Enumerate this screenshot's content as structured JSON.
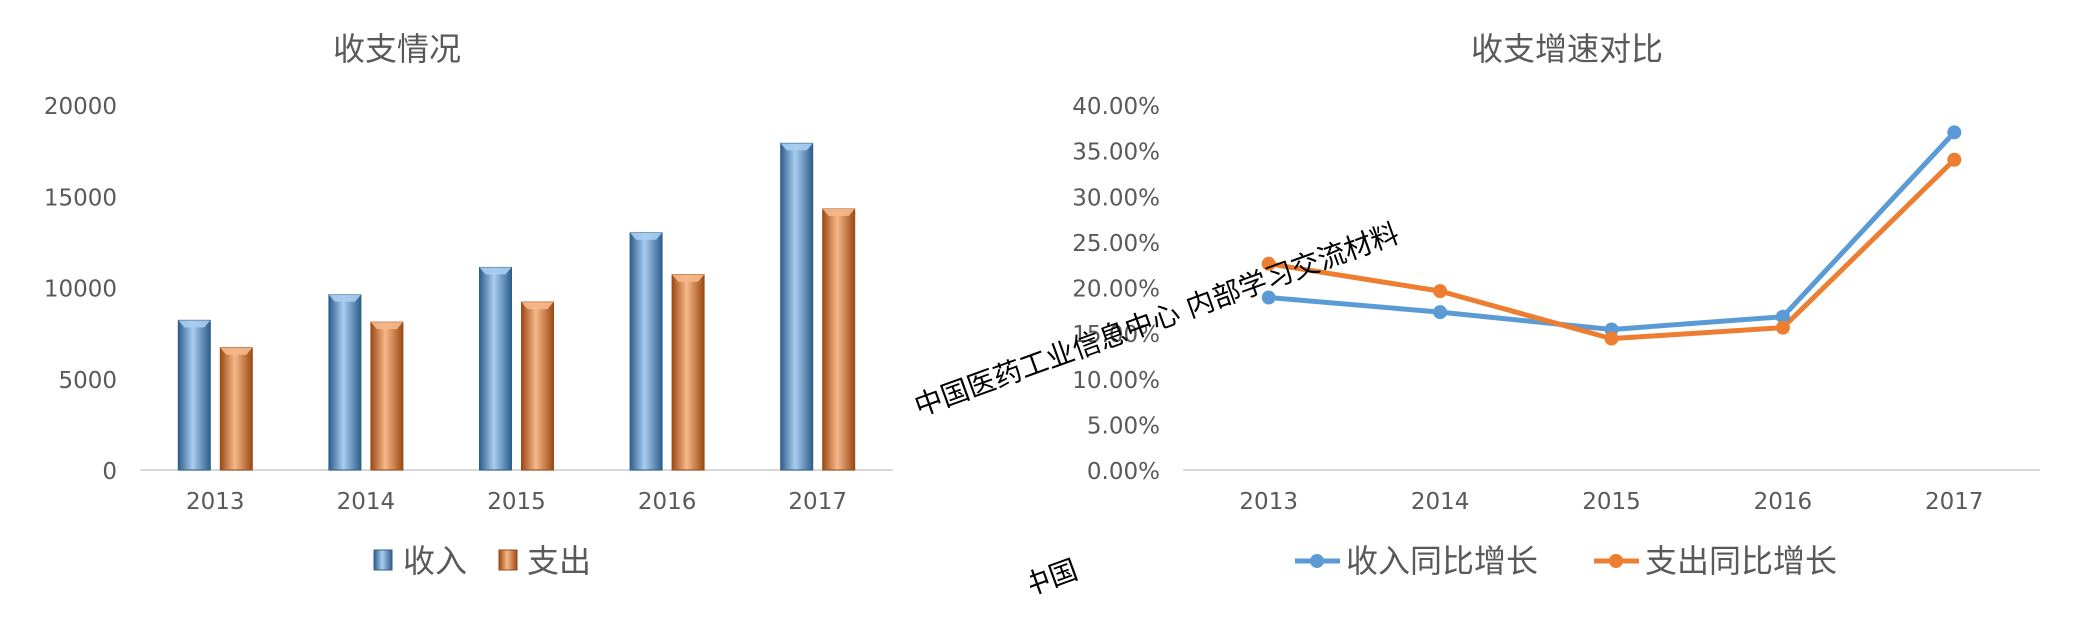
{
  "colors": {
    "income": "#5B9BD5",
    "income_dark": "#2E5F8C",
    "income_light": "#A9CDEF",
    "expense": "#ED7D31",
    "expense_dark": "#9C4A14",
    "expense_light": "#F6B88A",
    "axis_text": "#595959",
    "title_text": "#595959",
    "axis_line": "#D9D9D9"
  },
  "watermark": {
    "text": "中国医药工业信息中心 内部学习交流材料",
    "fragment": "中国"
  },
  "chart_data": [
    {
      "type": "bar",
      "title": "收支情况",
      "categories": [
        "2013",
        "2014",
        "2015",
        "2016",
        "2017"
      ],
      "series": [
        {
          "name": "收入",
          "values": [
            8200,
            9600,
            11100,
            13000,
            17900
          ]
        },
        {
          "name": "支出",
          "values": [
            6700,
            8100,
            9200,
            10700,
            14300
          ]
        }
      ],
      "ylim": [
        0,
        20000
      ],
      "yticks": [
        0,
        5000,
        10000,
        15000,
        20000
      ],
      "ytick_labels": [
        "0",
        "5000",
        "10000",
        "15000",
        "20000"
      ],
      "grid": false,
      "legend": "bottom"
    },
    {
      "type": "line",
      "title": "收支增速对比",
      "categories": [
        "2013",
        "2014",
        "2015",
        "2016",
        "2017"
      ],
      "series": [
        {
          "name": "收入同比增长",
          "values": [
            18.9,
            17.3,
            15.4,
            16.8,
            37.0
          ]
        },
        {
          "name": "支出同比增长",
          "values": [
            22.6,
            19.6,
            14.4,
            15.6,
            34.0
          ]
        }
      ],
      "ylim": [
        0,
        40
      ],
      "yticks": [
        0,
        5,
        10,
        15,
        20,
        25,
        30,
        35,
        40
      ],
      "ytick_labels": [
        "0.00%",
        "5.00%",
        "10.00%",
        "15.00%",
        "20.00%",
        "25.00%",
        "30.00%",
        "35.00%",
        "40.00%"
      ],
      "grid": false,
      "legend": "bottom"
    }
  ]
}
